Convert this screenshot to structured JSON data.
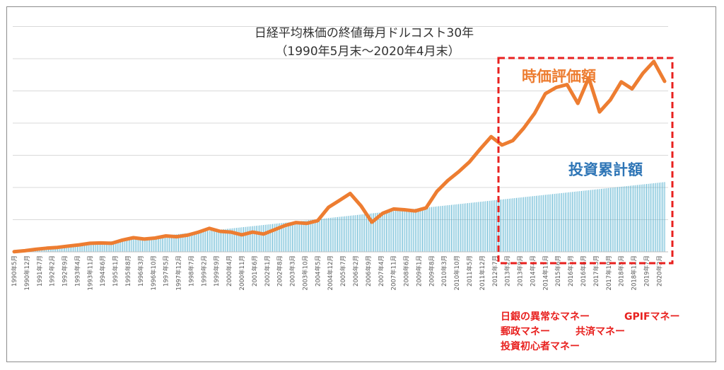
{
  "chart_data": {
    "type": "area",
    "title": "日経平均株価の終値毎月ドルコスト30年",
    "subtitle": "（1990年5月末～2020年4月末）",
    "x_tick_labels": [
      "1990年5月",
      "1990年12月",
      "1991年7月",
      "1992年2月",
      "1992年9月",
      "1993年4月",
      "1993年11月",
      "1994年6月",
      "1995年1月",
      "1995年8月",
      "1996年3月",
      "1996年10月",
      "1997年5月",
      "1997年12月",
      "1998年7月",
      "1999年2月",
      "1999年9月",
      "2000年4月",
      "2000年11月",
      "2001年6月",
      "2002年1月",
      "2002年8月",
      "2003年3月",
      "2003年10月",
      "2004年5月",
      "2004年12月",
      "2005年7月",
      "2006年2月",
      "2006年9月",
      "2007年4月",
      "2007年11月",
      "2008年6月",
      "2009年1月",
      "2009年8月",
      "2010年3月",
      "2010年10月",
      "2011年5月",
      "2011年12月",
      "2012年7月",
      "2013年2月",
      "2013年9月",
      "2014年4月",
      "2014年11月",
      "2015年6月",
      "2016年1月",
      "2016年8月",
      "2017年3月",
      "2017年10月",
      "2018年5月",
      "2018年12月",
      "2019年7月",
      "2020年2月"
    ],
    "grid": true,
    "legend": "none",
    "series": [
      {
        "name": "投資累計額",
        "style": "bars",
        "color": "#3fa7c9",
        "x_months": [
          0,
          360
        ],
        "values": [
          0.1,
          36.0
        ]
      },
      {
        "name": "時価評価額",
        "style": "line",
        "color": "#ed7d31",
        "x_months": [
          0,
          6,
          12,
          18,
          24,
          30,
          36,
          42,
          48,
          54,
          60,
          66,
          72,
          78,
          84,
          90,
          96,
          102,
          108,
          114,
          120,
          126,
          132,
          138,
          144,
          150,
          156,
          162,
          168,
          174,
          180,
          186,
          192,
          198,
          204,
          210,
          216,
          222,
          228,
          234,
          240,
          246,
          252,
          258,
          264,
          270,
          276,
          282,
          288,
          294,
          300,
          306,
          312,
          318,
          324,
          330,
          336,
          342,
          348,
          354,
          360
        ],
        "values": [
          0.1,
          0.6,
          1.3,
          1.9,
          2.3,
          3.0,
          3.6,
          4.4,
          4.6,
          4.4,
          6.1,
          7.3,
          6.6,
          7.1,
          8.2,
          7.8,
          8.6,
          10.2,
          12.1,
          10.6,
          10.2,
          8.8,
          10.2,
          9.2,
          11.4,
          13.6,
          15.1,
          14.7,
          16.1,
          23.0,
          26.5,
          30.1,
          23.7,
          15.3,
          19.9,
          22.1,
          21.7,
          21.1,
          22.7,
          31.2,
          36.8,
          41.3,
          46.4,
          53.1,
          59.4,
          55.1,
          57.4,
          63.8,
          71.4,
          81.6,
          84.8,
          86.3,
          76.6,
          89.8,
          72.2,
          78.4,
          87.7,
          84.1,
          92.1,
          98.2,
          88.0
        ]
      }
    ],
    "annotations": {
      "line_label": "時価評価額",
      "bar_label": "投資累計額",
      "notes": [
        "日銀の異常なマネー",
        "GPIFマネー",
        "郵政マネー",
        "共済マネー",
        "投資初心者マネー"
      ]
    },
    "colors": {
      "highlight_box": "#e8211f",
      "gridline": "#d9d9d9"
    }
  }
}
